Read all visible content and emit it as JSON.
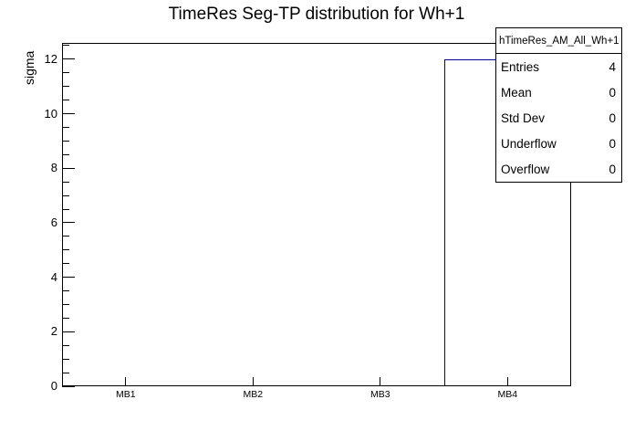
{
  "title": "TimeRes Seg-TP distribution for Wh+1",
  "stats_box": {
    "header": "hTimeRes_AM_All_Wh+1",
    "rows": [
      {
        "label": "Entries",
        "value": "4"
      },
      {
        "label": "Mean",
        "value": "0"
      },
      {
        "label": "Std Dev",
        "value": "0"
      },
      {
        "label": "Underflow",
        "value": "0"
      },
      {
        "label": "Overflow",
        "value": "0"
      }
    ]
  },
  "chart_data": {
    "type": "bar",
    "title": "TimeRes Seg-TP distribution for Wh+1",
    "categories": [
      "MB1",
      "MB2",
      "MB3",
      "MB4"
    ],
    "values": [
      0,
      0,
      0,
      12
    ],
    "xlabel": "",
    "ylabel": "sigma",
    "ylim": [
      0,
      12.6
    ],
    "ytick_major_step": 2,
    "ytick_minor_step": 0.5,
    "grid": false,
    "legend_position": "none",
    "bar_style": "outline",
    "line_color": "#00009a"
  },
  "colors": {
    "histogram_line": "#00009a",
    "axis": "#000000",
    "background": "#ffffff",
    "text": "#000000"
  }
}
